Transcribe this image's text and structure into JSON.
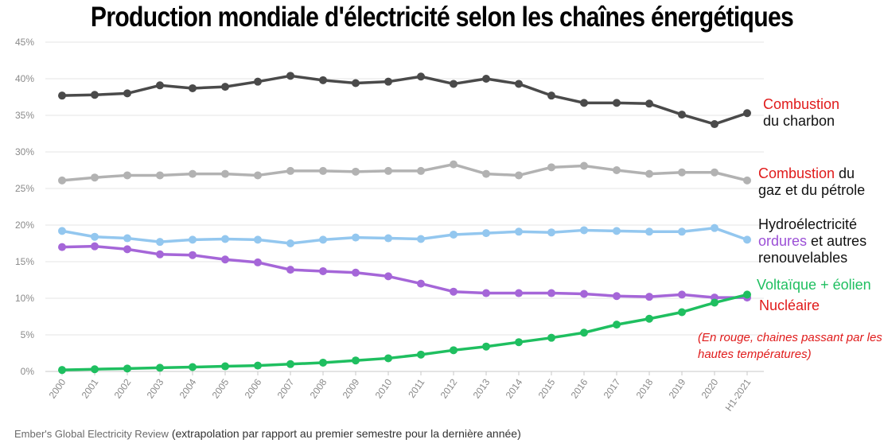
{
  "chart_data": {
    "type": "line",
    "title": "Production mondiale d'électricité selon les chaînes énergétiques",
    "x": [
      "2000",
      "2001",
      "2002",
      "2003",
      "2004",
      "2005",
      "2006",
      "2007",
      "2008",
      "2009",
      "2010",
      "2011",
      "2012",
      "2013",
      "2014",
      "2015",
      "2016",
      "2017",
      "2018",
      "2019",
      "2020",
      "H1-2021"
    ],
    "y_ticks": [
      "0%",
      "5%",
      "10%",
      "15%",
      "20%",
      "25%",
      "30%",
      "35%",
      "40%",
      "45%"
    ],
    "ylim": [
      0,
      45
    ],
    "y_unit": "%",
    "grid": true,
    "series": [
      {
        "key": "coal",
        "color": "#4a4a4a",
        "values": [
          37.7,
          37.8,
          38.0,
          39.1,
          38.7,
          38.9,
          39.6,
          40.4,
          39.8,
          39.4,
          39.6,
          40.3,
          39.3,
          40.0,
          39.3,
          37.7,
          36.7,
          36.7,
          36.6,
          35.1,
          33.8,
          35.3
        ]
      },
      {
        "key": "gas-oil",
        "color": "#b2b2b2",
        "values": [
          26.1,
          26.5,
          26.8,
          26.8,
          27.0,
          27.0,
          26.8,
          27.4,
          27.4,
          27.3,
          27.4,
          27.4,
          28.3,
          27.0,
          26.8,
          27.9,
          28.1,
          27.5,
          27.0,
          27.2,
          27.2,
          26.1
        ]
      },
      {
        "key": "hydro-renewables",
        "color": "#93c7ef",
        "values": [
          19.2,
          18.4,
          18.2,
          17.7,
          18.0,
          18.1,
          18.0,
          17.5,
          18.0,
          18.3,
          18.2,
          18.1,
          18.7,
          18.9,
          19.1,
          19.0,
          19.3,
          19.2,
          19.1,
          19.1,
          19.6,
          18.0
        ]
      },
      {
        "key": "nuclear",
        "color": "#a566d8",
        "values": [
          17.0,
          17.1,
          16.7,
          16.0,
          15.9,
          15.3,
          14.9,
          13.9,
          13.7,
          13.5,
          13.0,
          12.0,
          10.9,
          10.7,
          10.7,
          10.7,
          10.6,
          10.3,
          10.2,
          10.5,
          10.1,
          10.1
        ]
      },
      {
        "key": "solar-wind",
        "color": "#1fbf60",
        "values": [
          0.2,
          0.3,
          0.4,
          0.5,
          0.6,
          0.7,
          0.8,
          1.0,
          1.2,
          1.5,
          1.8,
          2.3,
          2.9,
          3.4,
          4.0,
          4.6,
          5.3,
          6.4,
          7.2,
          8.1,
          9.4,
          10.5
        ]
      }
    ],
    "legend": {
      "coal": {
        "red": "Combustion",
        "rest": "du charbon"
      },
      "gas": {
        "red": "Combustion",
        "rest1": " du",
        "rest2": "gaz et du pétrole"
      },
      "hydro": {
        "line1": "Hydroélectricité",
        "purple": "ordures",
        "rest": " et autres",
        "line3": "renouvelables"
      },
      "solar": "Voltaïque + éolien",
      "nuclear": "Nucléaire"
    },
    "note": "(En rouge, chaines passant par les hautes températures)"
  },
  "source": {
    "name": "Ember's Global Electricity Review",
    "detail": " (extrapolation par rapport au premier semestre pour la dernière année)"
  }
}
